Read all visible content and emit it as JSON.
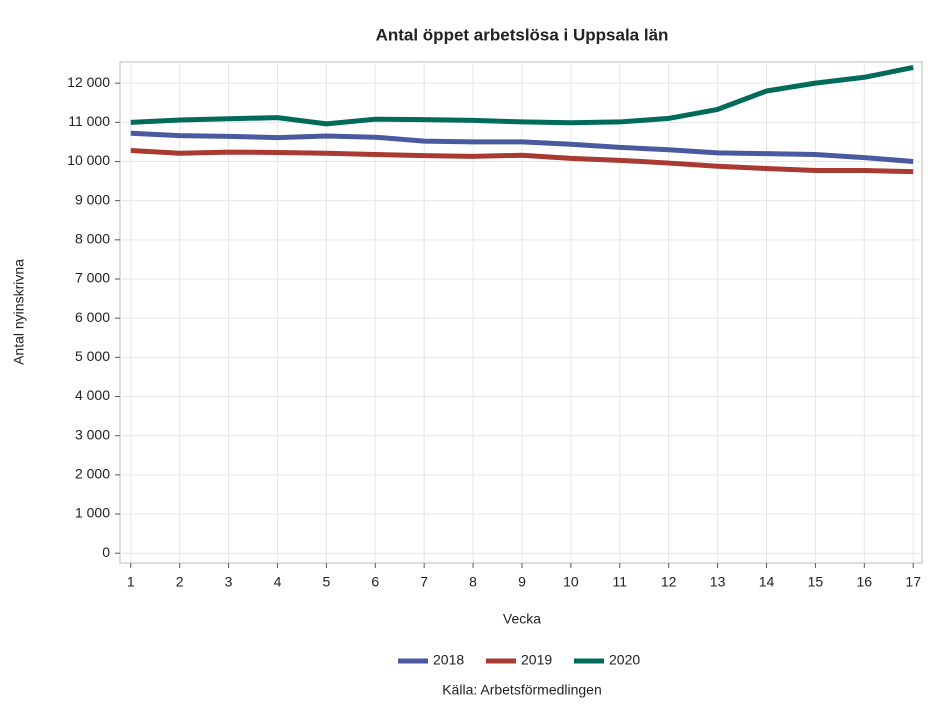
{
  "chart_data": {
    "type": "line",
    "title": "Antal öppet arbetslösa i Uppsala län",
    "x_label": "Vecka",
    "y_label": "Antal nyinskrivna",
    "source": "Källa: Arbetsförmedlingen",
    "x": [
      1,
      2,
      3,
      4,
      5,
      6,
      7,
      8,
      9,
      10,
      11,
      12,
      13,
      14,
      15,
      16,
      17
    ],
    "series": [
      {
        "name": "2018",
        "color": "#4a5aa0",
        "values": [
          10720,
          10660,
          10640,
          10610,
          10650,
          10620,
          10520,
          10500,
          10500,
          10440,
          10360,
          10300,
          10220,
          10200,
          10180,
          10100,
          10000
        ]
      },
      {
        "name": "2019",
        "color": "#a83a32",
        "values": [
          10280,
          10210,
          10240,
          10230,
          10210,
          10180,
          10150,
          10130,
          10160,
          10080,
          10030,
          9960,
          9880,
          9820,
          9770,
          9770,
          9740
        ]
      },
      {
        "name": "2020",
        "color": "#006b5b",
        "values": [
          11000,
          11060,
          11090,
          11120,
          10960,
          11080,
          11070,
          11050,
          11010,
          10990,
          11010,
          11100,
          11330,
          11800,
          12000,
          12150,
          12400
        ]
      }
    ],
    "xlim": [
      0.78,
      17.18
    ],
    "xticks": [
      1,
      2,
      3,
      4,
      5,
      6,
      7,
      8,
      9,
      10,
      11,
      12,
      13,
      14,
      15,
      16,
      17
    ],
    "ylim": [
      -250,
      12540
    ],
    "yticks": [
      0,
      {
        "value": 1000,
        "label": "1 000"
      },
      {
        "value": 2000,
        "label": "2 000"
      },
      {
        "value": 3000,
        "label": "3 000"
      },
      {
        "value": 4000,
        "label": "4 000"
      },
      {
        "value": 5000,
        "label": "5 000"
      },
      {
        "value": 6000,
        "label": "6 000"
      },
      {
        "value": 7000,
        "label": "7 000"
      },
      {
        "value": 8000,
        "label": "8 000"
      },
      {
        "value": 9000,
        "label": "9 000"
      },
      {
        "value": 10000,
        "label": "10 000"
      },
      {
        "value": 11000,
        "label": "11 000"
      },
      {
        "value": 12000,
        "label": "12 000"
      }
    ],
    "grid": true,
    "legend": "bottom"
  }
}
